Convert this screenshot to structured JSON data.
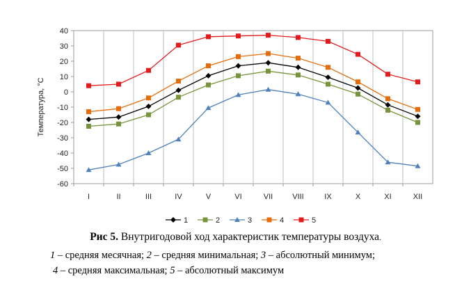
{
  "chart_data": {
    "type": "line",
    "ylabel": "Температура, °С",
    "xlabel": "",
    "categories": [
      "I",
      "II",
      "III",
      "IV",
      "V",
      "VI",
      "VII",
      "VIII",
      "IX",
      "X",
      "XI",
      "XII"
    ],
    "ylim": [
      -60,
      40
    ],
    "yticks": [
      40,
      30,
      20,
      10,
      0,
      -10,
      -20,
      -30,
      -40,
      -50,
      -60
    ],
    "grid": "vertical",
    "legend_position": "bottom",
    "series": [
      {
        "name": "1",
        "color": "#000000",
        "marker": "diamond",
        "values": [
          -18,
          -16.5,
          -9.5,
          1,
          10.5,
          17,
          19,
          16,
          9.5,
          2.5,
          -8.5,
          -16
        ]
      },
      {
        "name": "2",
        "color": "#77933C",
        "marker": "square",
        "values": [
          -22.5,
          -21,
          -15,
          -3.5,
          4.5,
          10.5,
          13.5,
          11,
          5,
          -1.5,
          -12,
          -20
        ]
      },
      {
        "name": "3",
        "color": "#4F81BD",
        "marker": "triangle",
        "values": [
          -51,
          -47.5,
          -40,
          -31,
          -10.5,
          -2,
          1.5,
          -1.5,
          -7,
          -26.5,
          -46,
          -48.5
        ]
      },
      {
        "name": "4",
        "color": "#E46C0A",
        "marker": "square",
        "values": [
          -13,
          -11,
          -4,
          7,
          17,
          23,
          25,
          22,
          16,
          6.5,
          -4.5,
          -11.5
        ]
      },
      {
        "name": "5",
        "color": "#E41A1C",
        "marker": "square",
        "values": [
          4,
          5,
          14,
          30.5,
          36,
          36.5,
          37,
          35.5,
          33,
          24.5,
          11.5,
          6.5
        ]
      }
    ]
  },
  "caption": {
    "fig_label": "Рис 5.",
    "title": " Внутригодовой ход характеристик температуры воздуха",
    "title_end": ".",
    "n1": "1",
    "t1": " – средняя месячная; ",
    "n2": "2",
    "t2": " – средняя минимальная; ",
    "n3": "3",
    "t3": " – абсолютный минимум;",
    "n4": "4",
    "t4": " – средняя максимальная; ",
    "n5": "5",
    "t5": " – абсолютный максимум"
  }
}
